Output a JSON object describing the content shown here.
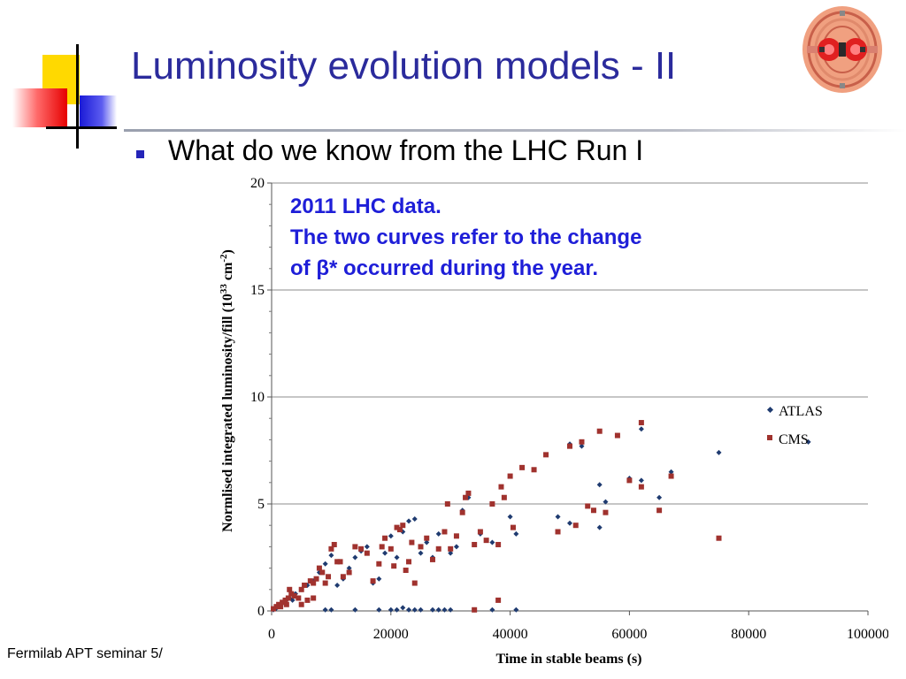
{
  "slide": {
    "title": "Luminosity evolution models - II",
    "bullet": "What do we know from the LHC Run I",
    "footer": "Fermilab APT seminar 5/",
    "logo_icon": "accelerator-logo-icon"
  },
  "annotation": {
    "line1": "2011 LHC data.",
    "line2": "The two curves refer to the change",
    "line3": "of β* occurred during the year."
  },
  "colors": {
    "title": "#2b2b9c",
    "annotation": "#1e1ed8",
    "atlas": "#1f3b70",
    "cms": "#a0322e"
  },
  "chart_data": {
    "type": "scatter",
    "xlabel": "Time in stable beams (s)",
    "ylabel_main": "Normlised integrated luminosity/fill (10",
    "ylabel_exp": "33",
    "ylabel_unit": " cm",
    "ylabel_unit_exp": "-2",
    "ylabel_close": ")",
    "xlim": [
      0,
      100000
    ],
    "ylim": [
      0,
      20
    ],
    "x_ticks": [
      "0",
      "20000",
      "40000",
      "60000",
      "80000",
      "100000"
    ],
    "y_ticks": [
      "0",
      "5",
      "10",
      "15",
      "20"
    ],
    "grid": true,
    "legend_position": "right",
    "series": [
      {
        "name": "ATLAS",
        "marker": "diamond",
        "points": [
          [
            300,
            0.05
          ],
          [
            700,
            0.1
          ],
          [
            1000,
            0.2
          ],
          [
            1500,
            0.3
          ],
          [
            2000,
            0.4
          ],
          [
            2500,
            0.5
          ],
          [
            3000,
            0.6
          ],
          [
            3500,
            0.5
          ],
          [
            4000,
            0.8
          ],
          [
            5000,
            1.0
          ],
          [
            6000,
            1.2
          ],
          [
            7000,
            1.4
          ],
          [
            8000,
            1.8
          ],
          [
            9000,
            2.2
          ],
          [
            10000,
            2.6
          ],
          [
            11000,
            1.2
          ],
          [
            12000,
            1.5
          ],
          [
            13000,
            2.0
          ],
          [
            14000,
            2.5
          ],
          [
            15000,
            2.8
          ],
          [
            16000,
            3.0
          ],
          [
            17000,
            1.3
          ],
          [
            18000,
            1.5
          ],
          [
            19000,
            2.7
          ],
          [
            20000,
            3.5
          ],
          [
            21000,
            2.5
          ],
          [
            22000,
            3.7
          ],
          [
            23000,
            4.2
          ],
          [
            24000,
            4.3
          ],
          [
            25000,
            2.7
          ],
          [
            26000,
            3.2
          ],
          [
            27000,
            2.5
          ],
          [
            28000,
            3.6
          ],
          [
            30000,
            2.7
          ],
          [
            31000,
            3.0
          ],
          [
            32000,
            4.7
          ],
          [
            33000,
            5.3
          ],
          [
            35000,
            3.6
          ],
          [
            37000,
            3.2
          ],
          [
            40000,
            4.4
          ],
          [
            41000,
            3.6
          ],
          [
            48000,
            4.4
          ],
          [
            50000,
            4.1
          ],
          [
            55000,
            3.9
          ],
          [
            55000,
            5.9
          ],
          [
            56000,
            5.1
          ],
          [
            60000,
            6.2
          ],
          [
            62000,
            6.1
          ],
          [
            65000,
            5.3
          ],
          [
            67000,
            6.5
          ],
          [
            75000,
            7.4
          ],
          [
            50000,
            7.8
          ],
          [
            52000,
            7.7
          ],
          [
            62000,
            8.5
          ],
          [
            90000,
            7.9
          ],
          [
            9000,
            0.05
          ],
          [
            10000,
            0.05
          ],
          [
            14000,
            0.05
          ],
          [
            18000,
            0.05
          ],
          [
            20000,
            0.05
          ],
          [
            21000,
            0.05
          ],
          [
            22000,
            0.15
          ],
          [
            23000,
            0.05
          ],
          [
            24000,
            0.05
          ],
          [
            25000,
            0.05
          ],
          [
            27000,
            0.05
          ],
          [
            28000,
            0.05
          ],
          [
            29000,
            0.05
          ],
          [
            30000,
            0.05
          ],
          [
            34000,
            0.05
          ],
          [
            37000,
            0.05
          ],
          [
            41000,
            0.05
          ]
        ]
      },
      {
        "name": "CMS",
        "marker": "square",
        "points": [
          [
            300,
            0.1
          ],
          [
            800,
            0.2
          ],
          [
            1200,
            0.3
          ],
          [
            1800,
            0.4
          ],
          [
            2300,
            0.5
          ],
          [
            2800,
            0.6
          ],
          [
            3300,
            0.8
          ],
          [
            3800,
            0.7
          ],
          [
            4500,
            0.6
          ],
          [
            5000,
            1.0
          ],
          [
            5500,
            1.2
          ],
          [
            6000,
            0.5
          ],
          [
            6500,
            1.4
          ],
          [
            7000,
            1.3
          ],
          [
            7500,
            1.5
          ],
          [
            8000,
            2.0
          ],
          [
            8500,
            1.8
          ],
          [
            9000,
            1.3
          ],
          [
            9500,
            1.6
          ],
          [
            10000,
            2.9
          ],
          [
            10500,
            3.1
          ],
          [
            11000,
            2.3
          ],
          [
            11500,
            2.3
          ],
          [
            12000,
            1.6
          ],
          [
            13000,
            1.8
          ],
          [
            14000,
            3.0
          ],
          [
            15000,
            2.9
          ],
          [
            16000,
            2.7
          ],
          [
            17000,
            1.4
          ],
          [
            18000,
            2.2
          ],
          [
            18500,
            3.0
          ],
          [
            19000,
            3.4
          ],
          [
            20000,
            2.9
          ],
          [
            20500,
            2.1
          ],
          [
            21000,
            3.9
          ],
          [
            21500,
            3.8
          ],
          [
            22000,
            4.0
          ],
          [
            22500,
            1.9
          ],
          [
            23000,
            2.3
          ],
          [
            23500,
            3.2
          ],
          [
            24000,
            1.3
          ],
          [
            25000,
            3.0
          ],
          [
            26000,
            3.4
          ],
          [
            27000,
            2.4
          ],
          [
            28000,
            2.9
          ],
          [
            29000,
            3.7
          ],
          [
            29500,
            5.0
          ],
          [
            30000,
            2.9
          ],
          [
            31000,
            3.5
          ],
          [
            32000,
            4.6
          ],
          [
            32500,
            5.3
          ],
          [
            33000,
            5.5
          ],
          [
            34000,
            3.1
          ],
          [
            35000,
            3.7
          ],
          [
            36000,
            3.3
          ],
          [
            37000,
            5.0
          ],
          [
            38000,
            3.1
          ],
          [
            38500,
            5.8
          ],
          [
            39000,
            5.3
          ],
          [
            40000,
            6.3
          ],
          [
            40500,
            3.9
          ],
          [
            42000,
            6.7
          ],
          [
            44000,
            6.6
          ],
          [
            46000,
            7.3
          ],
          [
            48000,
            3.7
          ],
          [
            50000,
            7.7
          ],
          [
            51000,
            4.0
          ],
          [
            52000,
            7.9
          ],
          [
            53000,
            4.9
          ],
          [
            54000,
            4.7
          ],
          [
            55000,
            8.4
          ],
          [
            56000,
            4.6
          ],
          [
            58000,
            8.2
          ],
          [
            60000,
            6.1
          ],
          [
            62000,
            5.8
          ],
          [
            62000,
            8.8
          ],
          [
            65000,
            4.7
          ],
          [
            67000,
            6.3
          ],
          [
            75000,
            3.4
          ],
          [
            34000,
            0.05
          ],
          [
            38000,
            0.5
          ],
          [
            3000,
            1.0
          ],
          [
            5000,
            0.3
          ],
          [
            7000,
            0.6
          ],
          [
            1500,
            0.2
          ],
          [
            2500,
            0.3
          ]
        ]
      }
    ]
  }
}
